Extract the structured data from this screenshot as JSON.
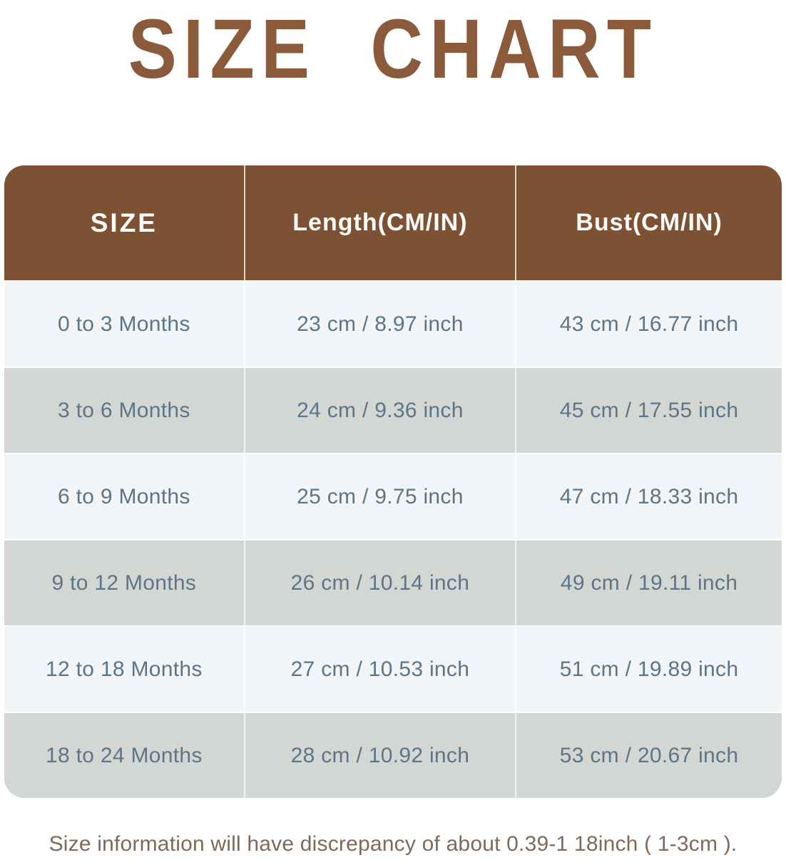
{
  "title": "SIZE CHART",
  "chart_data": {
    "type": "table",
    "title": "SIZE CHART",
    "columns": [
      "SIZE",
      "Length(CM/IN)",
      "Bust(CM/IN)"
    ],
    "rows": [
      [
        "0 to 3 Months",
        "23 cm / 8.97 inch",
        "43 cm / 16.77 inch"
      ],
      [
        "3 to 6 Months",
        "24 cm / 9.36 inch",
        "45 cm / 17.55 inch"
      ],
      [
        "6 to 9 Months",
        "25 cm / 9.75 inch",
        "47 cm / 18.33 inch"
      ],
      [
        "9 to 12 Months",
        "26 cm / 10.14 inch",
        "49 cm / 19.11 inch"
      ],
      [
        "12 to 18 Months",
        "27 cm / 10.53 inch",
        "51 cm / 19.89 inch"
      ],
      [
        "18 to 24 Months",
        "28 cm / 10.92 inch",
        "53 cm / 20.67 inch"
      ]
    ]
  },
  "footer": {
    "note": "Size information will have discrepancy of about 0.39-1 18inch ( 1-3cm )."
  },
  "colors": {
    "title_brown": "#8a5a3b",
    "header_brown": "#7d5134",
    "row_light": "#f1f5f7",
    "row_gray": "#d3d7d3",
    "body_text": "#5e7487",
    "header_text": "#fdfbf7",
    "footer_text": "#7d6a5d"
  }
}
